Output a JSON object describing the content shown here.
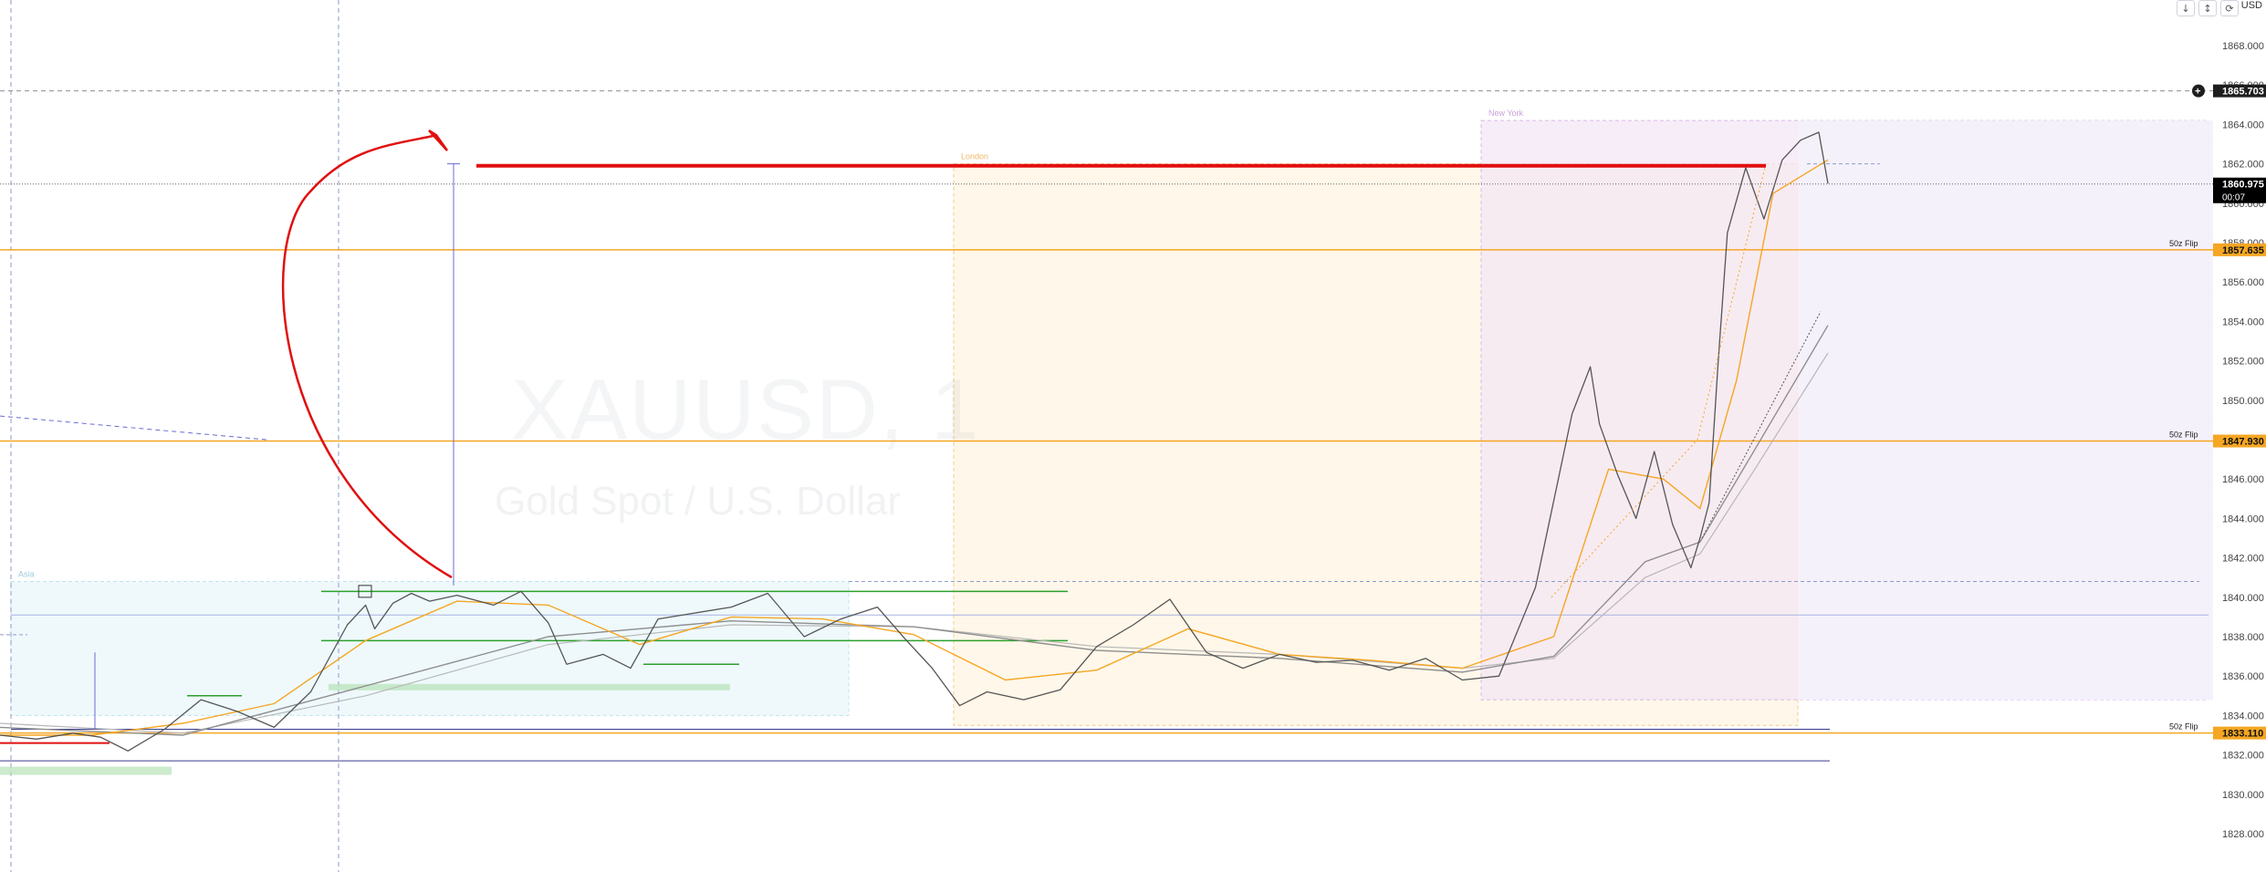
{
  "watermark": {
    "symbol": "XAUUSD, 1",
    "description": "Gold Spot / U.S. Dollar"
  },
  "toolbar": {
    "currency": "USD",
    "icons": [
      "arrow-down-icon",
      "scale-icon",
      "reset-icon"
    ]
  },
  "colors": {
    "price_line": "#555555",
    "ema_orange": "#f5a623",
    "ma_gray": "#9e9e9e",
    "drawing_red": "#e01010",
    "support_green": "#2ca02c",
    "flip_orange": "#f5a623",
    "london_fill": "#fff3e0",
    "newyork_fill": "#f3e5f5",
    "asia_fill": "#e8f6fb"
  },
  "chart_data": {
    "type": "line",
    "title": "XAUUSD, 1",
    "subtitle": "Gold Spot / U.S. Dollar",
    "xlabel": "",
    "ylabel": "",
    "ylim": [
      1827,
      1869
    ],
    "y_ticks": [
      "1868.000",
      "1866.000",
      "1864.000",
      "1862.000",
      "1860.000",
      "1858.000",
      "1856.000",
      "1854.000",
      "1852.000",
      "1850.000",
      "1848.000",
      "1846.000",
      "1844.000",
      "1842.000",
      "1840.000",
      "1838.000",
      "1836.000",
      "1834.000",
      "1832.000",
      "1830.000",
      "1828.000"
    ],
    "grid": false,
    "price_labels": [
      {
        "value": 1865.703,
        "text": "1865.703",
        "style": "dark"
      },
      {
        "value": 1860.975,
        "text": "1860.975",
        "sub": "00:07",
        "style": "current"
      },
      {
        "value": 1857.635,
        "text": "1857.635",
        "tag": "50z Flip",
        "style": "orange"
      },
      {
        "value": 1847.93,
        "text": "1847.930",
        "tag": "50z Flip",
        "style": "orange"
      },
      {
        "value": 1833.11,
        "text": "1833.110",
        "tag": "50z Flip",
        "style": "orange"
      }
    ],
    "sessions": [
      {
        "name": "Asia",
        "label": "Asia",
        "y_low": 1834.0,
        "y_high": 1840.8
      },
      {
        "name": "London",
        "label": "London",
        "y_low": 1833.5,
        "y_high": 1862.0
      },
      {
        "name": "New York",
        "label": "New York",
        "y_low": 1834.8,
        "y_high": 1864.2
      }
    ],
    "horizontal_levels": [
      {
        "value": 1861.9,
        "style": "red-thick"
      },
      {
        "value": 1840.3,
        "style": "green"
      },
      {
        "value": 1837.8,
        "style": "green"
      },
      {
        "value": 1836.6,
        "style": "green"
      },
      {
        "value": 1835.0,
        "style": "green"
      },
      {
        "value": 1839.1,
        "style": "blue-thin"
      },
      {
        "value": 1831.7,
        "style": "navy"
      }
    ],
    "series": [
      {
        "name": "",
        "type": "price",
        "x": [
          0,
          0.02,
          0.04,
          0.055,
          0.07,
          0.09,
          0.11,
          0.13,
          0.15,
          0.17,
          0.19,
          0.2,
          0.205,
          0.215,
          0.225,
          0.235,
          0.25,
          0.27,
          0.285,
          0.3,
          0.31,
          0.33,
          0.345,
          0.36,
          0.38,
          0.4,
          0.42,
          0.44,
          0.46,
          0.48,
          0.495,
          0.51,
          0.525,
          0.54,
          0.56,
          0.58,
          0.6,
          0.62,
          0.64,
          0.66,
          0.68,
          0.7,
          0.72,
          0.74,
          0.76,
          0.78,
          0.8,
          0.82,
          0.84,
          0.86,
          0.87,
          0.875,
          0.885,
          0.895,
          0.905,
          0.915,
          0.925,
          0.93,
          0.935,
          0.94,
          0.945,
          0.955,
          0.965,
          0.975,
          0.985,
          0.995,
          1.0
        ],
        "values": [
          1833.0,
          1832.8,
          1833.1,
          1832.9,
          1832.2,
          1833.3,
          1834.8,
          1834.2,
          1833.4,
          1835.2,
          1838.6,
          1839.6,
          1838.4,
          1839.7,
          1840.2,
          1839.8,
          1840.1,
          1839.6,
          1840.3,
          1838.7,
          1836.6,
          1837.1,
          1836.4,
          1838.9,
          1839.2,
          1839.5,
          1840.2,
          1838.0,
          1838.9,
          1839.5,
          1837.9,
          1836.4,
          1834.5,
          1835.2,
          1834.8,
          1835.3,
          1837.5,
          1838.6,
          1839.9,
          1837.2,
          1836.4,
          1837.1,
          1836.7,
          1836.8,
          1836.3,
          1836.9,
          1835.8,
          1836.0,
          1840.5,
          1849.3,
          1851.7,
          1848.8,
          1846.2,
          1844.0,
          1847.4,
          1843.7,
          1841.5,
          1843.0,
          1844.8,
          1852.0,
          1858.5,
          1861.8,
          1859.2,
          1862.2,
          1863.2,
          1863.6,
          1861.0
        ]
      },
      {
        "name": "",
        "type": "ema",
        "x": [
          0,
          0.05,
          0.1,
          0.15,
          0.2,
          0.25,
          0.3,
          0.35,
          0.4,
          0.45,
          0.5,
          0.55,
          0.6,
          0.65,
          0.7,
          0.75,
          0.8,
          0.85,
          0.88,
          0.91,
          0.93,
          0.95,
          0.97,
          1.0
        ],
        "values": [
          1833.0,
          1833.0,
          1833.6,
          1834.6,
          1837.8,
          1839.8,
          1839.6,
          1837.6,
          1839.0,
          1838.9,
          1838.1,
          1835.8,
          1836.3,
          1838.4,
          1837.1,
          1836.8,
          1836.4,
          1838.0,
          1846.5,
          1846.0,
          1844.5,
          1851.0,
          1860.5,
          1862.2
        ]
      },
      {
        "name": "",
        "type": "ma",
        "x": [
          0,
          0.1,
          0.2,
          0.3,
          0.4,
          0.5,
          0.6,
          0.7,
          0.8,
          0.85,
          0.9,
          0.93,
          0.96,
          1.0
        ],
        "values": [
          1833.4,
          1833.0,
          1835.5,
          1838.0,
          1838.8,
          1838.5,
          1837.3,
          1836.9,
          1836.2,
          1837.0,
          1841.8,
          1842.8,
          1847.5,
          1853.8
        ]
      },
      {
        "name": "",
        "type": "ma2",
        "x": [
          0,
          0.1,
          0.2,
          0.3,
          0.4,
          0.5,
          0.6,
          0.7,
          0.8,
          0.85,
          0.9,
          0.93,
          0.96,
          1.0
        ],
        "values": [
          1833.6,
          1833.1,
          1835.0,
          1837.6,
          1838.6,
          1838.5,
          1837.5,
          1837.1,
          1836.4,
          1836.9,
          1841.0,
          1842.2,
          1846.5,
          1852.4
        ]
      }
    ]
  }
}
